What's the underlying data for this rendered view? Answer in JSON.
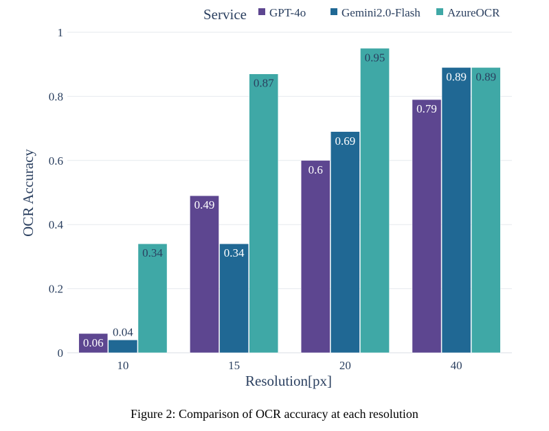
{
  "chart_data": {
    "type": "bar",
    "categories": [
      "10",
      "15",
      "20",
      "40"
    ],
    "series": [
      {
        "name": "GPT-4o",
        "values": [
          0.06,
          0.49,
          0.6,
          0.79
        ],
        "labels": [
          "0.06",
          "0.49",
          "0.6",
          "0.79"
        ],
        "color": "#5d4690",
        "label_color": "#ffffff"
      },
      {
        "name": "Gemini2.0-Flash",
        "values": [
          0.04,
          0.34,
          0.69,
          0.89
        ],
        "labels": [
          "0.04",
          "0.34",
          "0.69",
          "0.89"
        ],
        "color": "#206894",
        "label_color": "#ffffff"
      },
      {
        "name": "AzureOCR",
        "values": [
          0.34,
          0.87,
          0.95,
          0.89
        ],
        "labels": [
          "0.34",
          "0.87",
          "0.95",
          "0.89"
        ],
        "color": "#3fa8a6",
        "label_color": "#2a3f5f"
      }
    ],
    "xlabel": "Resolution[px]",
    "ylabel": "OCR Accuracy",
    "ylim": [
      0,
      1
    ],
    "yticks": [
      "0",
      "0.2",
      "0.4",
      "0.6",
      "0.8",
      "1"
    ],
    "legend_title": "Service",
    "legend_position": "top",
    "grid": true,
    "outside_label_values": [
      0.04
    ]
  },
  "caption": "Figure 2: Comparison of OCR accuracy at each resolution"
}
